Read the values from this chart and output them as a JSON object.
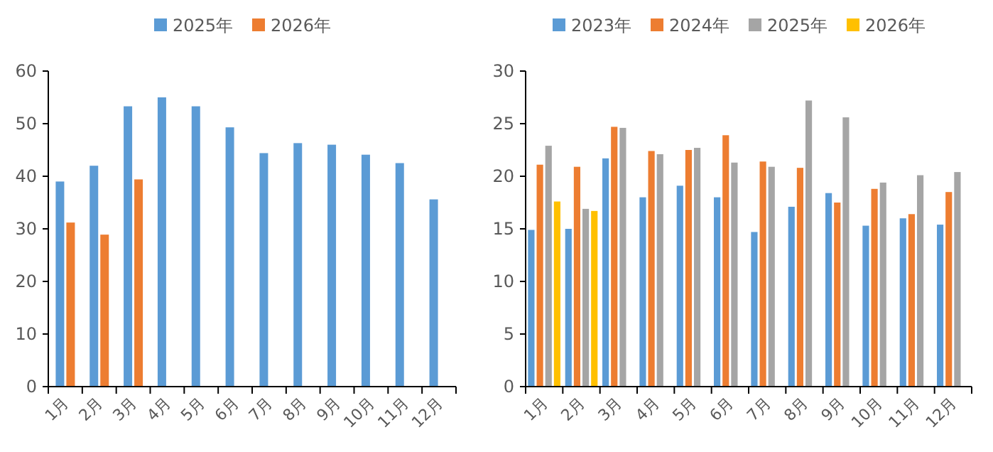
{
  "chart_data": [
    {
      "type": "bar",
      "categories": [
        "1月",
        "2月",
        "3月",
        "4月",
        "5月",
        "6月",
        "7月",
        "8月",
        "9月",
        "10月",
        "11月",
        "12月"
      ],
      "ylim": [
        0,
        60
      ],
      "yticks": [
        0,
        10,
        20,
        30,
        40,
        50,
        60
      ],
      "grid": false,
      "legend": "top",
      "series": [
        {
          "name": "2025年",
          "color": "#5b9bd5",
          "values": [
            39,
            42,
            53.3,
            55,
            53.3,
            49.3,
            44.4,
            46.3,
            46,
            44.1,
            42.5,
            35.6
          ]
        },
        {
          "name": "2026年",
          "color": "#ed7d31",
          "values": [
            31.2,
            28.9,
            39.4,
            null,
            null,
            null,
            null,
            null,
            null,
            null,
            null,
            null
          ]
        }
      ]
    },
    {
      "type": "bar",
      "categories": [
        "1月",
        "2月",
        "3月",
        "4月",
        "5月",
        "6月",
        "7月",
        "8月",
        "9月",
        "10月",
        "11月",
        "12月"
      ],
      "ylim": [
        0,
        30
      ],
      "yticks": [
        0,
        5,
        10,
        15,
        20,
        25,
        30
      ],
      "grid": false,
      "legend": "top",
      "series": [
        {
          "name": "2023年",
          "color": "#5b9bd5",
          "values": [
            14.9,
            15,
            21.7,
            18,
            19.1,
            18,
            14.7,
            17.1,
            18.4,
            15.3,
            16,
            15.4
          ]
        },
        {
          "name": "2024年",
          "color": "#ed7d31",
          "values": [
            21.1,
            20.9,
            24.7,
            22.4,
            22.5,
            23.9,
            21.4,
            20.8,
            17.5,
            18.8,
            16.4,
            18.5
          ]
        },
        {
          "name": "2025年",
          "color": "#a5a5a5",
          "values": [
            22.9,
            16.9,
            24.6,
            22.1,
            22.7,
            21.3,
            20.9,
            27.2,
            25.6,
            19.4,
            20.1,
            20.4
          ]
        },
        {
          "name": "2026年",
          "color": "#ffc000",
          "values": [
            17.6,
            16.7,
            null,
            null,
            null,
            null,
            null,
            null,
            null,
            null,
            null,
            null
          ]
        }
      ]
    }
  ]
}
